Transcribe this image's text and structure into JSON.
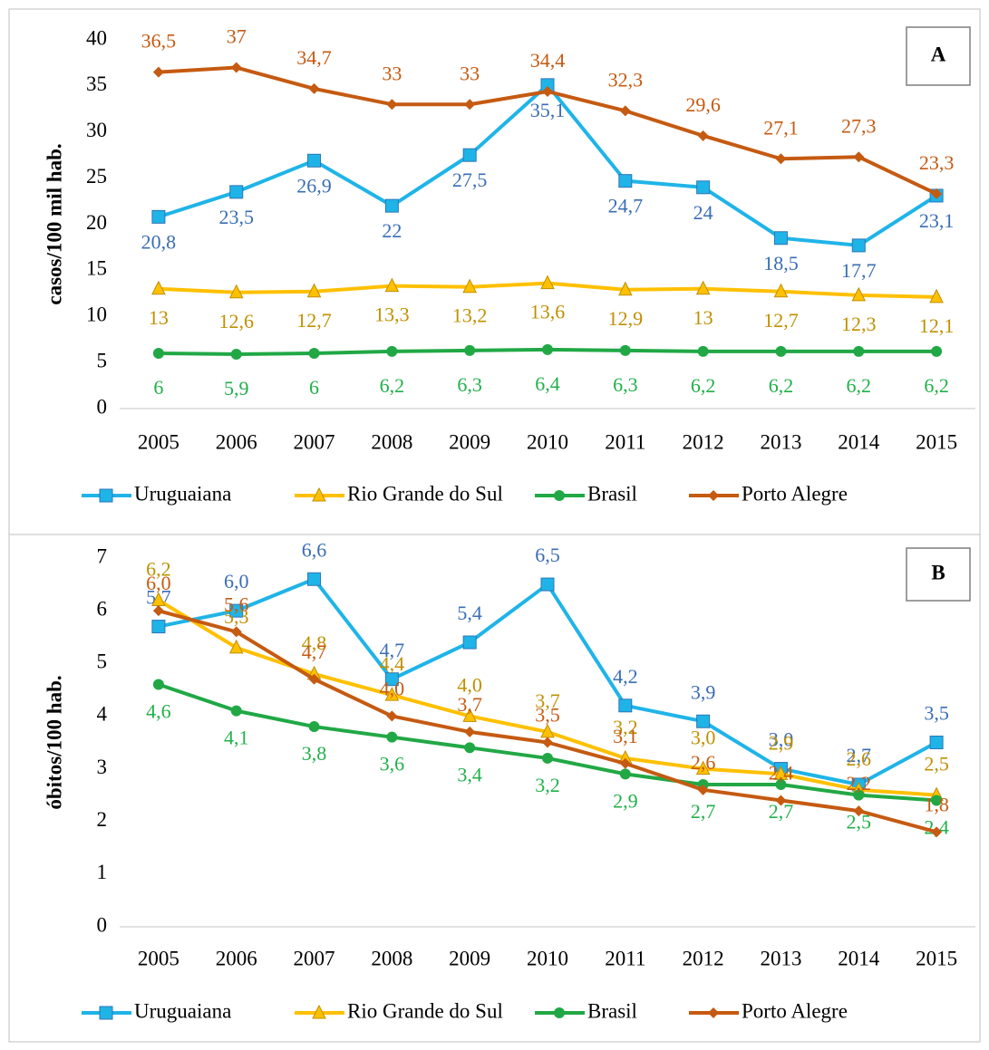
{
  "chart_data": [
    {
      "type": "line",
      "panel_label": "A",
      "ylabel": "casos/100 mil hab.",
      "categories": [
        "2005",
        "2006",
        "2007",
        "2008",
        "2009",
        "2010",
        "2011",
        "2012",
        "2013",
        "2014",
        "2015"
      ],
      "ylim": [
        0,
        40
      ],
      "yticks": [
        0,
        5,
        10,
        15,
        20,
        25,
        30,
        35,
        40
      ],
      "series": [
        {
          "name": "Uruguaiana",
          "color": "#1fb4e8",
          "label_color": "#3a6db5",
          "marker": "square",
          "values": [
            20.8,
            23.5,
            26.9,
            22,
            27.5,
            35.1,
            24.7,
            24,
            18.5,
            17.7,
            23.1
          ],
          "value_labels": [
            "20,8",
            "23,5",
            "26,9",
            "22",
            "27,5",
            "35,1",
            "24,7",
            "24",
            "18,5",
            "17,7",
            "23,1"
          ]
        },
        {
          "name": "Rio Grande do Sul",
          "color": "#ffc000",
          "label_color": "#bf9000",
          "marker": "triangle",
          "values": [
            13,
            12.6,
            12.7,
            13.3,
            13.2,
            13.6,
            12.9,
            13,
            12.7,
            12.3,
            12.1
          ],
          "value_labels": [
            "13",
            "12,6",
            "12,7",
            "13,3",
            "13,2",
            "13,6",
            "12,9",
            "13",
            "12,7",
            "12,3",
            "12,1"
          ]
        },
        {
          "name": "Brasil",
          "color": "#21a845",
          "label_color": "#21b04b",
          "marker": "circle",
          "values": [
            6,
            5.9,
            6,
            6.2,
            6.3,
            6.4,
            6.3,
            6.2,
            6.2,
            6.2,
            6.2
          ],
          "value_labels": [
            "6",
            "5,9",
            "6",
            "6,2",
            "6,3",
            "6,4",
            "6,3",
            "6,2",
            "6,2",
            "6,2",
            "6,2"
          ]
        },
        {
          "name": "Porto Alegre",
          "color": "#c55a11",
          "label_color": "#c55a11",
          "marker": "diamond",
          "values": [
            36.5,
            37,
            34.7,
            33,
            33,
            34.4,
            32.3,
            29.6,
            27.1,
            27.3,
            23.3
          ],
          "value_labels": [
            "36,5",
            "37",
            "34,7",
            "33",
            "33",
            "34,4",
            "32,3",
            "29,6",
            "27,1",
            "27,3",
            "23,3"
          ]
        }
      ]
    },
    {
      "type": "line",
      "panel_label": "B",
      "ylabel": "óbitos/100 hab.",
      "categories": [
        "2005",
        "2006",
        "2007",
        "2008",
        "2009",
        "2010",
        "2011",
        "2012",
        "2013",
        "2014",
        "2015"
      ],
      "ylim": [
        0,
        7
      ],
      "yticks": [
        0,
        1,
        2,
        3,
        4,
        5,
        6,
        7
      ],
      "series": [
        {
          "name": "Uruguaiana",
          "color": "#1fb4e8",
          "label_color": "#3a6db5",
          "marker": "square",
          "values": [
            5.7,
            6.0,
            6.6,
            4.7,
            5.4,
            6.5,
            4.2,
            3.9,
            3.0,
            2.7,
            3.5
          ],
          "value_labels": [
            "5,7",
            "6,0",
            "6,6",
            "4,7",
            "5,4",
            "6,5",
            "4,2",
            "3,9",
            "3,0",
            "2,7",
            "3,5"
          ]
        },
        {
          "name": "Rio Grande do Sul",
          "color": "#ffc000",
          "label_color": "#bf9000",
          "marker": "triangle",
          "values": [
            6.2,
            5.3,
            4.8,
            4.4,
            4.0,
            3.7,
            3.2,
            3.0,
            2.9,
            2.6,
            2.5
          ],
          "value_labels": [
            "6,2",
            "5,3",
            "4,8",
            "4,4",
            "4,0",
            "3,7",
            "3,2",
            "3,0",
            "2,9",
            "2,6",
            "2,5"
          ]
        },
        {
          "name": "Brasil",
          "color": "#21a845",
          "label_color": "#21b04b",
          "marker": "circle",
          "values": [
            4.6,
            4.1,
            3.8,
            3.6,
            3.4,
            3.2,
            2.9,
            2.7,
            2.7,
            2.5,
            2.4
          ],
          "value_labels": [
            "4,6",
            "4,1",
            "3,8",
            "3,6",
            "3,4",
            "3,2",
            "2,9",
            "2,7",
            "2,7",
            "2,5",
            "2,4"
          ]
        },
        {
          "name": "Porto Alegre",
          "color": "#c55a11",
          "label_color": "#c55a11",
          "marker": "diamond",
          "values": [
            6.0,
            5.6,
            4.7,
            4.0,
            3.7,
            3.5,
            3.1,
            2.6,
            2.4,
            2.2,
            1.8
          ],
          "value_labels": [
            "6,0",
            "5,6",
            "4,7",
            "4,0",
            "3,7",
            "3,5",
            "3,1",
            "2,6",
            "2,4",
            "2,2",
            "1,8"
          ]
        }
      ]
    }
  ]
}
